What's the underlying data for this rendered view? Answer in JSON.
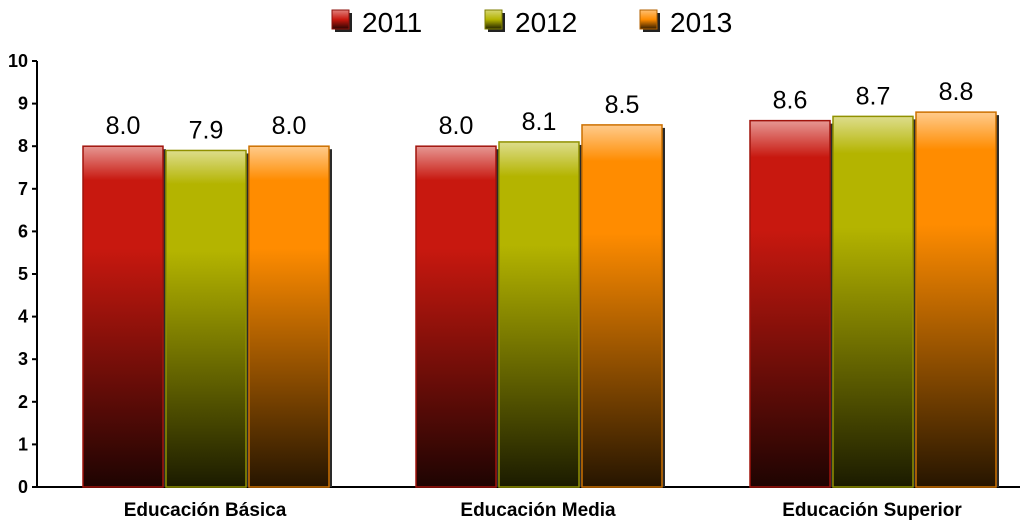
{
  "chart_data": {
    "type": "bar",
    "categories": [
      "Educación Básica",
      "Educación Media",
      "Educación Superior"
    ],
    "series": [
      {
        "name": "2011",
        "values": [
          8.0,
          8.0,
          8.6
        ],
        "labels": [
          "8.0",
          "8.0",
          "8.6"
        ],
        "color": "#c8180f"
      },
      {
        "name": "2012",
        "values": [
          7.9,
          8.1,
          8.7
        ],
        "labels": [
          "7.9",
          "8.1",
          "8.7"
        ],
        "color": "#b4b400"
      },
      {
        "name": "2013",
        "values": [
          8.0,
          8.5,
          8.8
        ],
        "labels": [
          "8.0",
          "8.5",
          "8.8"
        ],
        "color": "#ff8c00"
      }
    ],
    "yticks": [
      "0",
      "1",
      "2",
      "3",
      "4",
      "5",
      "6",
      "7",
      "8",
      "9",
      "10"
    ],
    "ylim": [
      0,
      10
    ],
    "grid": false,
    "legend_position": "top-center"
  }
}
